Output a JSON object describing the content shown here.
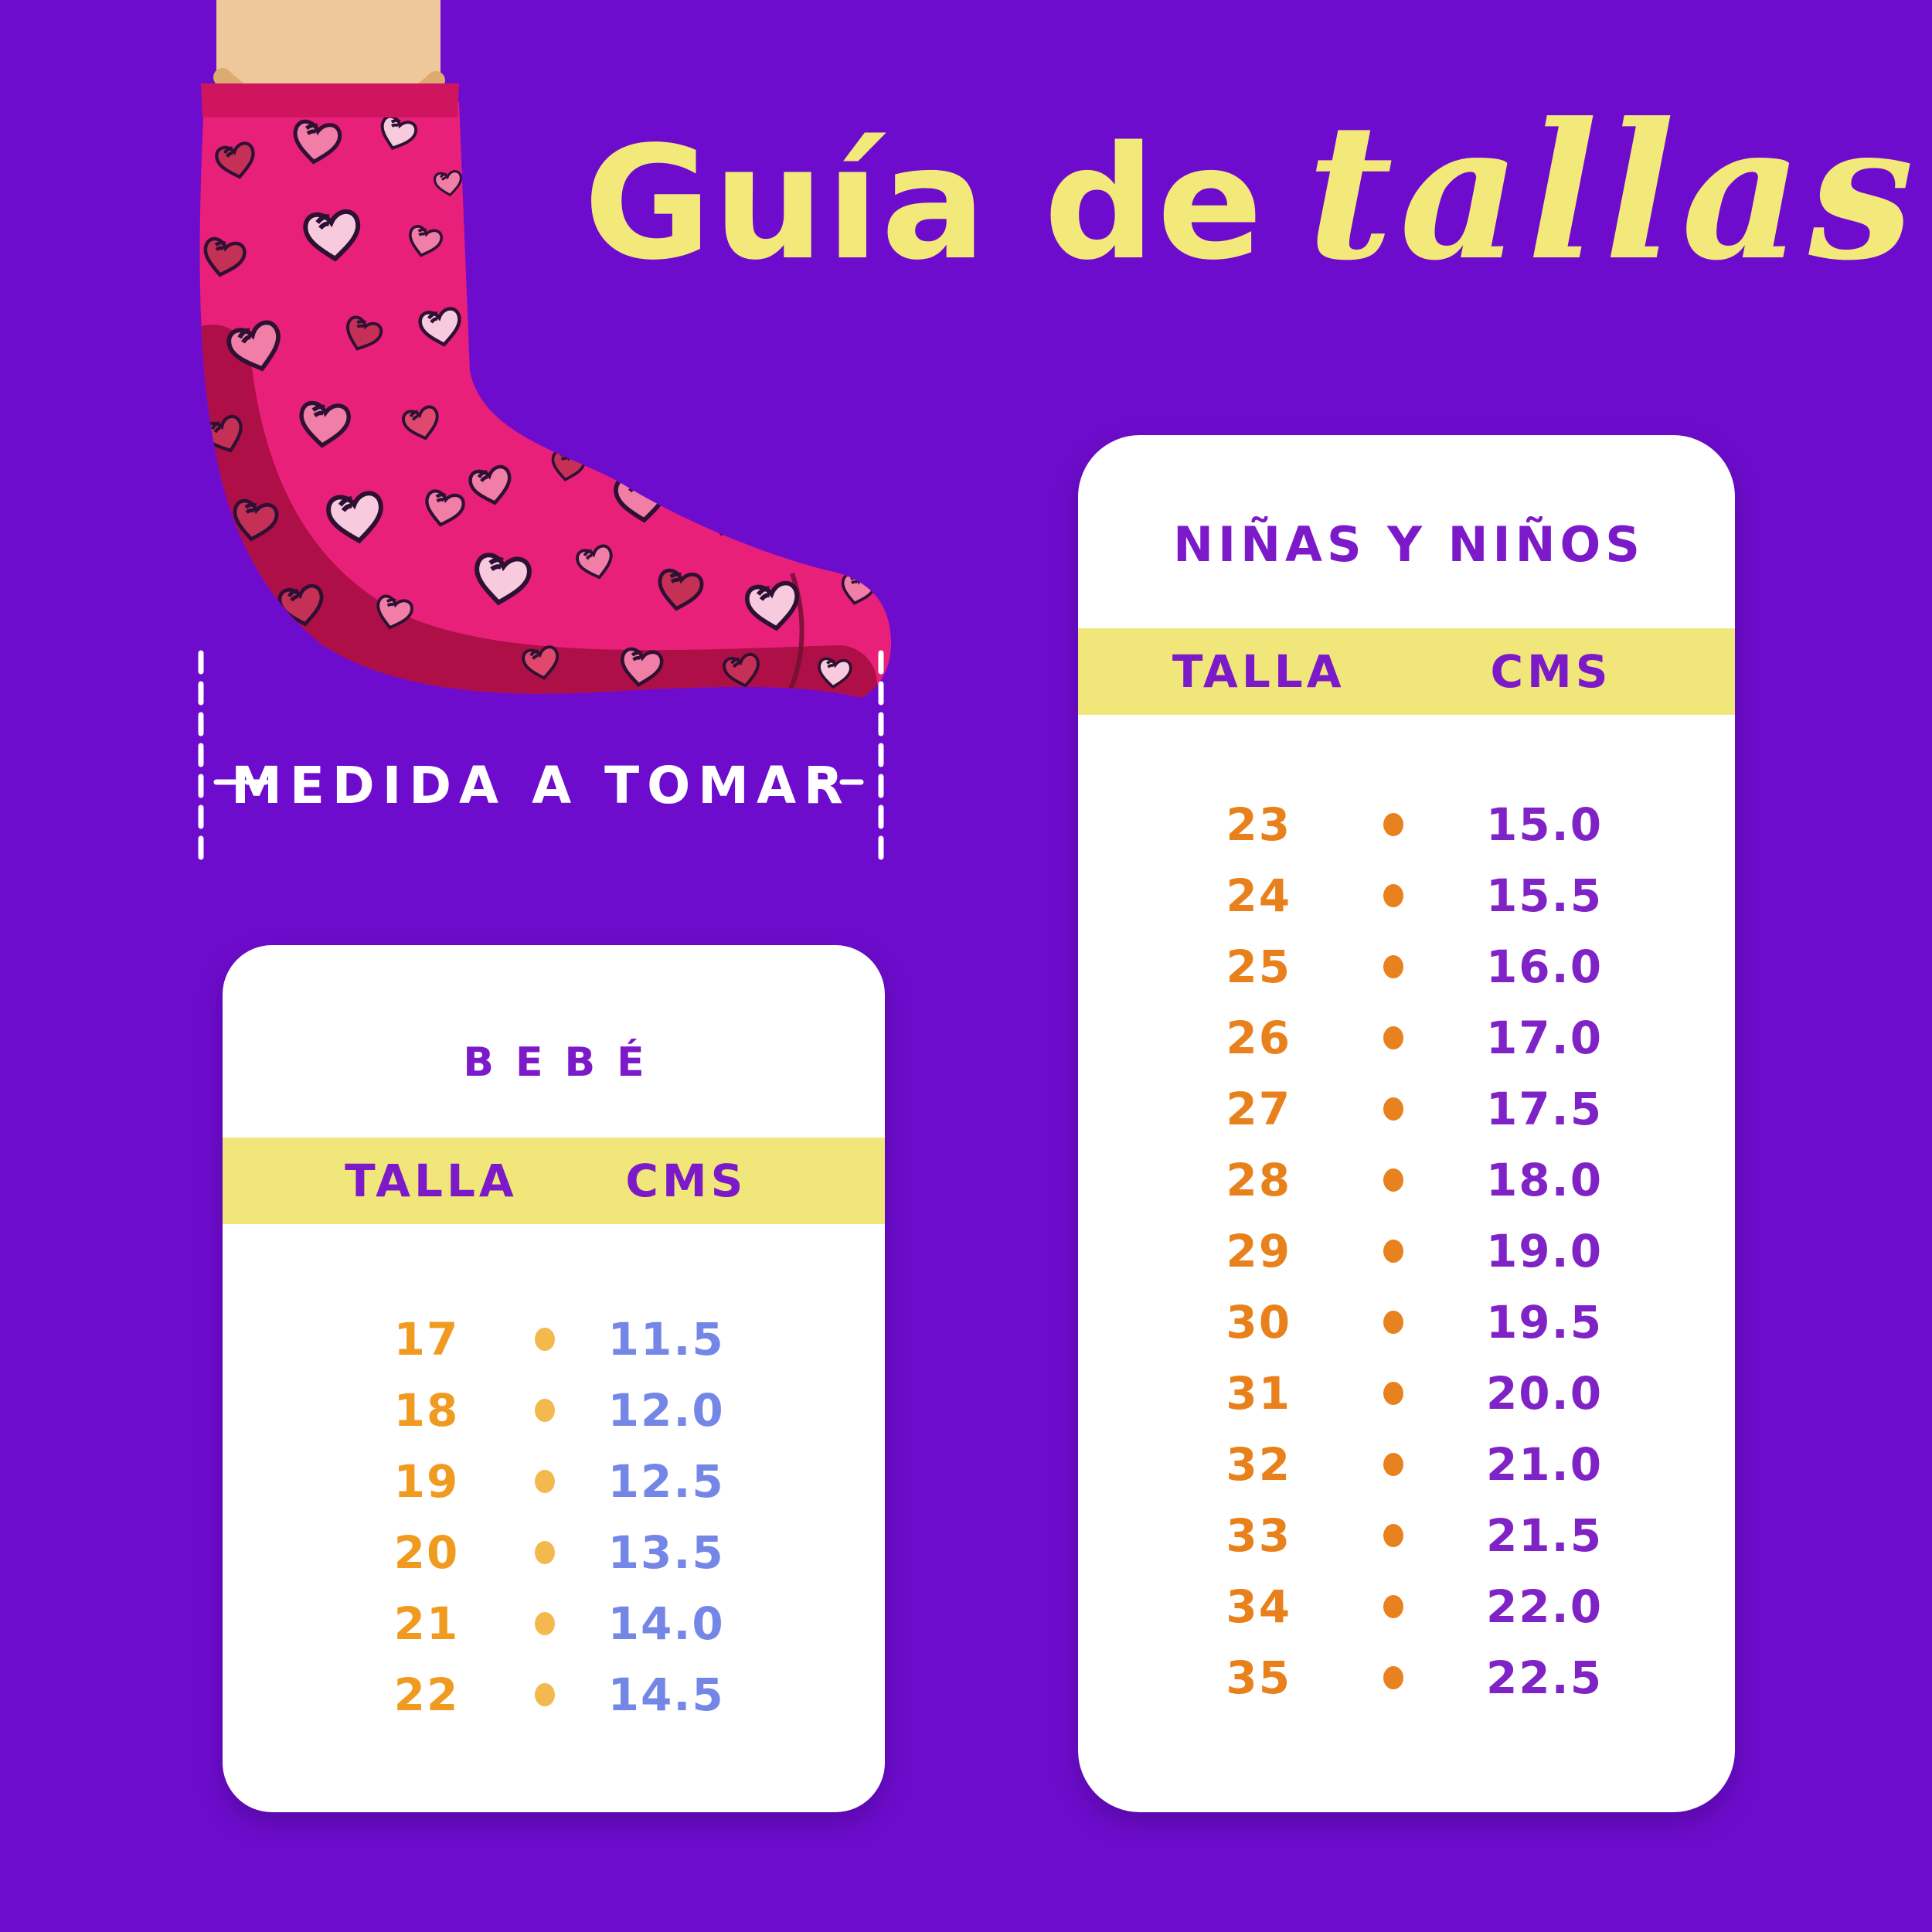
{
  "title": {
    "regular": "Guía de",
    "script": "tallas"
  },
  "measurement": {
    "label": "MEDIDA A TOMAR"
  },
  "tables": {
    "bebe": {
      "title": "BEBÉ",
      "columns": {
        "talla": "TALLA",
        "cms": "CMS"
      },
      "rows": [
        {
          "talla": "17",
          "cms": "11.5"
        },
        {
          "talla": "18",
          "cms": "12.0"
        },
        {
          "talla": "19",
          "cms": "12.5"
        },
        {
          "talla": "20",
          "cms": "13.5"
        },
        {
          "talla": "21",
          "cms": "14.0"
        },
        {
          "talla": "22",
          "cms": "14.5"
        }
      ]
    },
    "ninos": {
      "title": "NIÑAS Y NIÑOS",
      "columns": {
        "talla": "TALLA",
        "cms": "CMS"
      },
      "rows": [
        {
          "talla": "23",
          "cms": "15.0"
        },
        {
          "talla": "24",
          "cms": "15.5"
        },
        {
          "talla": "25",
          "cms": "16.0"
        },
        {
          "talla": "26",
          "cms": "17.0"
        },
        {
          "talla": "27",
          "cms": "17.5"
        },
        {
          "talla": "28",
          "cms": "18.0"
        },
        {
          "talla": "29",
          "cms": "19.0"
        },
        {
          "talla": "30",
          "cms": "19.5"
        },
        {
          "talla": "31",
          "cms": "20.0"
        },
        {
          "talla": "32",
          "cms": "21.0"
        },
        {
          "talla": "33",
          "cms": "21.5"
        },
        {
          "talla": "34",
          "cms": "22.0"
        },
        {
          "talla": "35",
          "cms": "22.5"
        }
      ]
    }
  },
  "colors": {
    "background": "#6e0ccd",
    "title_yellow": "#f3e97b",
    "band_yellow": "#f0e67a",
    "header_purple": "#7c19c9",
    "cms_purple_ninos": "#8023c6",
    "cms_periwinkle_bebe": "#7487e6",
    "talla_orange_ninos": "#e8811c",
    "talla_orange_bebe": "#f09b20",
    "dot_amber_bebe": "#f3b94e",
    "dot_orange_ninos": "#e8821e",
    "measure_white": "#ffffff",
    "card_white": "#ffffff",
    "sock_pink": "#e8207a",
    "sock_dark": "#ae0f46",
    "sock_cuff": "#d0155f",
    "heart_pale": "#f8cade",
    "heart_salmon": "#f07ea6",
    "heart_crimson": "#c43056",
    "heart_mid": "#e0486e",
    "heart_outline": "#2e1033",
    "skin": "#eec79b",
    "skin_shadow": "#dcab72"
  },
  "chart_data": [
    {
      "type": "table",
      "title": "BEBÉ",
      "columns": [
        "TALLA",
        "CMS"
      ],
      "rows": [
        [
          17,
          11.5
        ],
        [
          18,
          12.0
        ],
        [
          19,
          12.5
        ],
        [
          20,
          13.5
        ],
        [
          21,
          14.0
        ],
        [
          22,
          14.5
        ]
      ]
    },
    {
      "type": "table",
      "title": "NIÑAS Y NIÑOS",
      "columns": [
        "TALLA",
        "CMS"
      ],
      "rows": [
        [
          23,
          15.0
        ],
        [
          24,
          15.5
        ],
        [
          25,
          16.0
        ],
        [
          26,
          17.0
        ],
        [
          27,
          17.5
        ],
        [
          28,
          18.0
        ],
        [
          29,
          19.0
        ],
        [
          30,
          19.5
        ],
        [
          31,
          20.0
        ],
        [
          32,
          21.0
        ],
        [
          33,
          21.5
        ],
        [
          34,
          22.0
        ],
        [
          35,
          22.5
        ]
      ]
    }
  ]
}
